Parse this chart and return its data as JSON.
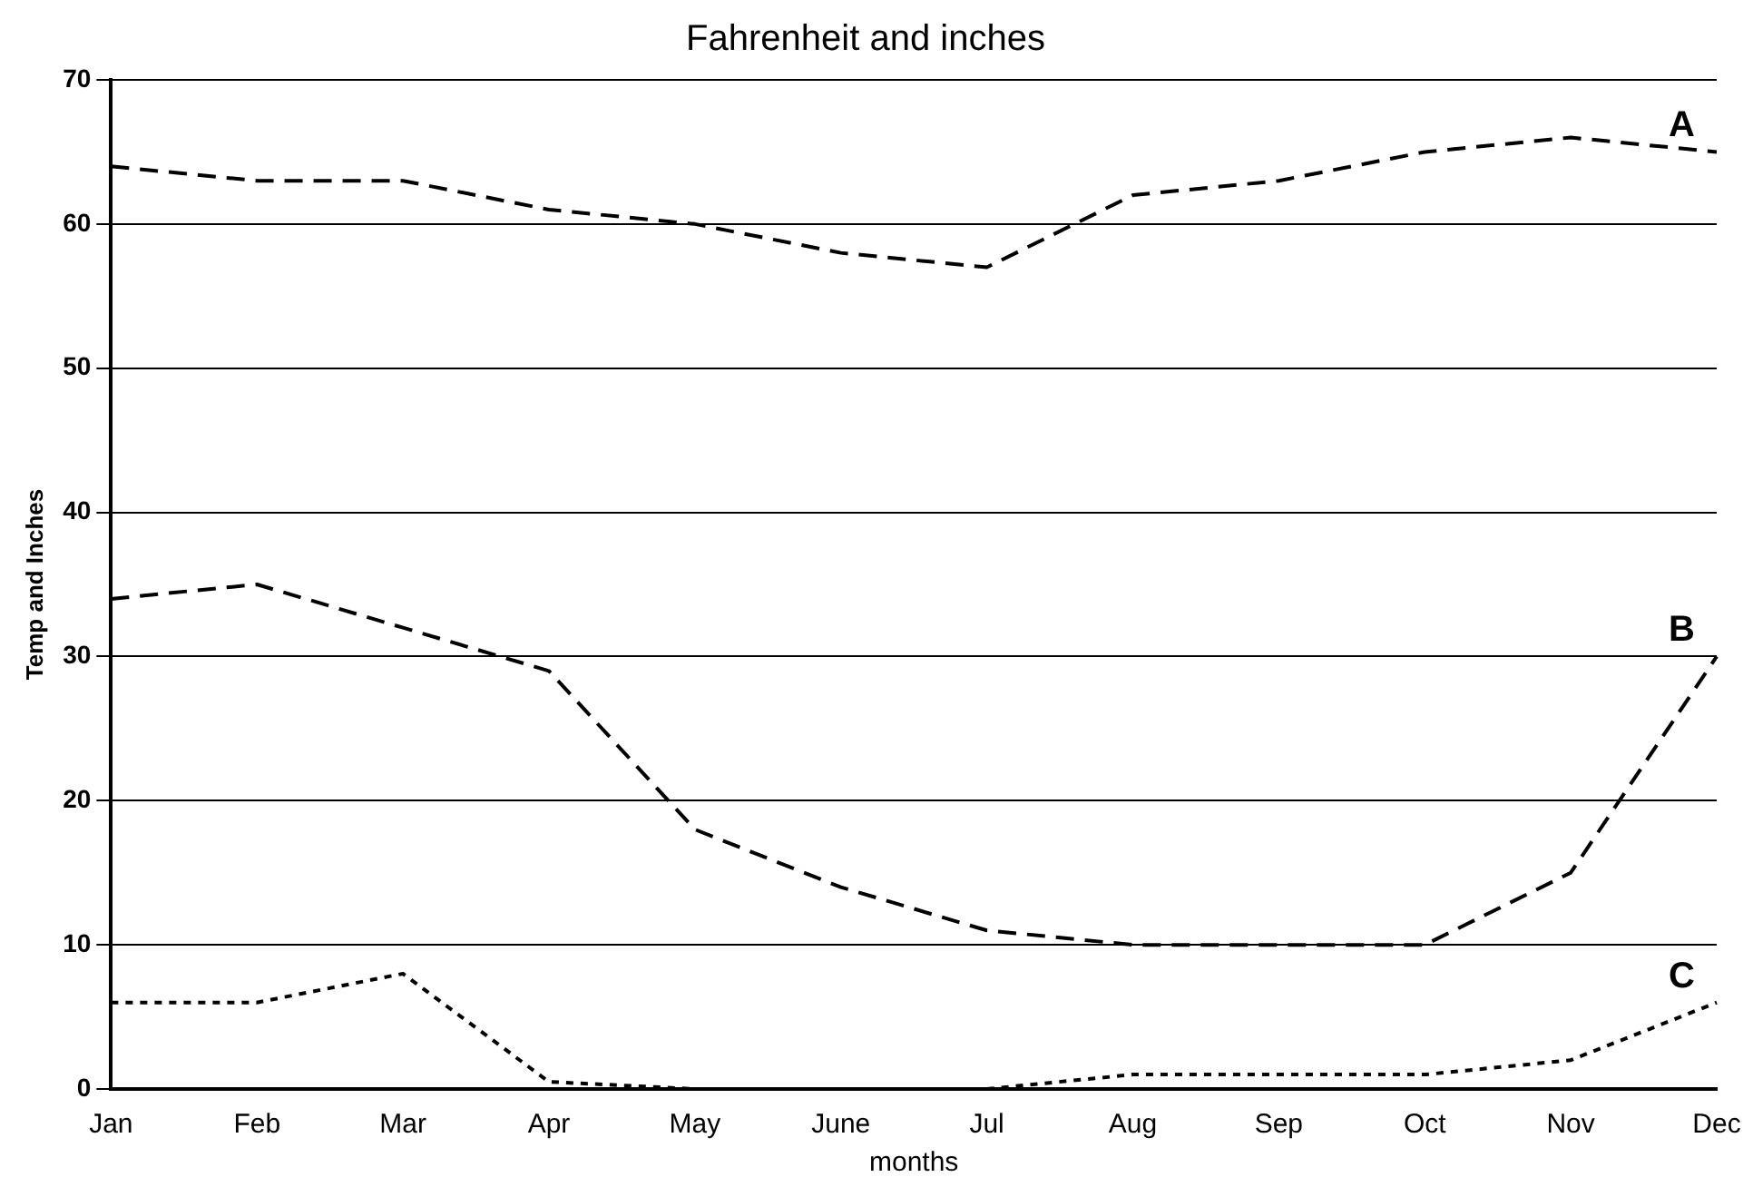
{
  "chart_data": {
    "type": "line",
    "title": "Fahrenheit and inches",
    "xlabel": "months",
    "ylabel": "Temp and Inches",
    "categories": [
      "Jan",
      "Feb",
      "Mar",
      "Apr",
      "May",
      "June",
      "Jul",
      "Aug",
      "Sep",
      "Oct",
      "Nov",
      "Dec"
    ],
    "series": [
      {
        "name": "A",
        "color": "#000000",
        "line_style": "dashed",
        "values": [
          64,
          63,
          63,
          61,
          60,
          58,
          57,
          62,
          63,
          65,
          66,
          65
        ]
      },
      {
        "name": "B",
        "color": "#000000",
        "line_style": "dashed",
        "values": [
          34,
          35,
          32,
          29,
          18,
          14,
          11,
          10,
          10,
          10,
          15,
          30
        ]
      },
      {
        "name": "C",
        "color": "#000000",
        "line_style": "dotted",
        "values": [
          6,
          6,
          8,
          0.5,
          0,
          0,
          0,
          1,
          1,
          1,
          2,
          6
        ]
      }
    ],
    "ylim": [
      0,
      70
    ],
    "yticks": [
      0,
      10,
      20,
      30,
      40,
      50,
      60,
      70
    ],
    "grid": "y",
    "marker": "none",
    "legend": false
  }
}
